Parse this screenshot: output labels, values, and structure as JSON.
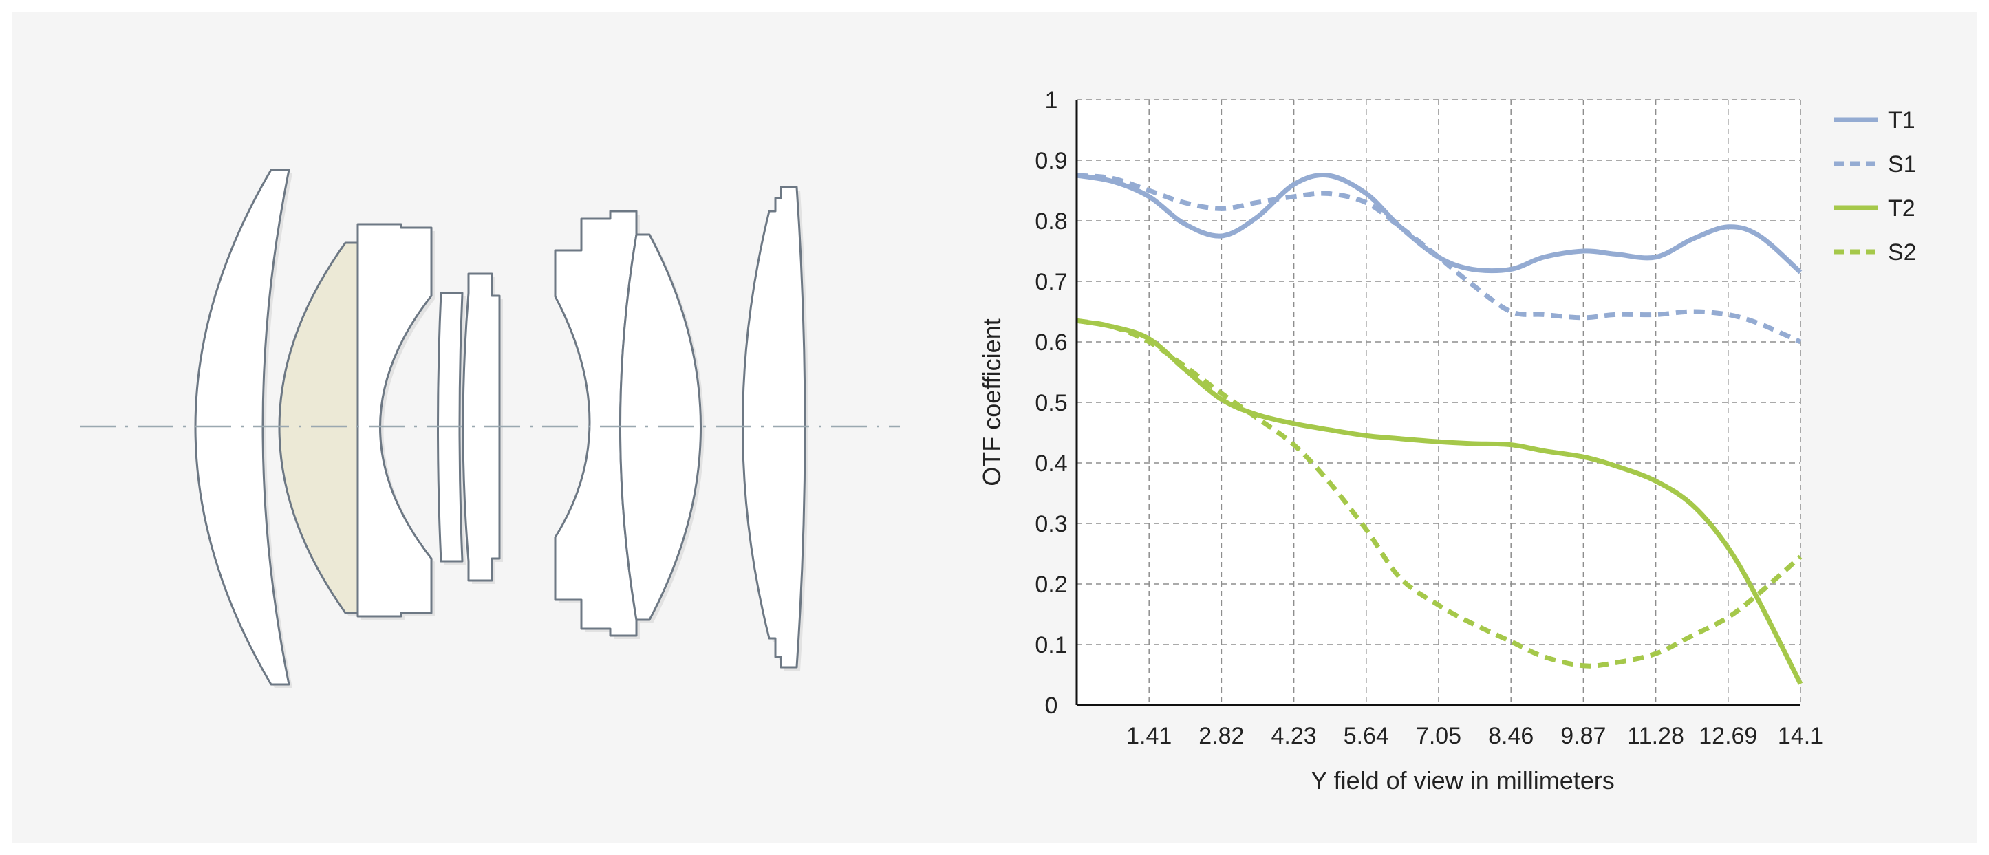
{
  "chart_data": {
    "type": "line",
    "xlabel": "Y field of view in millimeters",
    "ylabel": "OTF coefficient",
    "xlim": [
      0,
      14.1
    ],
    "ylim": [
      0,
      1
    ],
    "x_ticks": [
      "1.41",
      "2.82",
      "4.23",
      "5.64",
      "7.05",
      "8.46",
      "9.87",
      "11.28",
      "12.69",
      "14.1"
    ],
    "y_ticks": [
      "0",
      "0.1",
      "0.2",
      "0.3",
      "0.4",
      "0.5",
      "0.6",
      "0.7",
      "0.8",
      "0.9",
      "1"
    ],
    "grid": true,
    "legend_position": "right",
    "series": [
      {
        "name": "T1",
        "color": "#94abd2",
        "dashed": false,
        "x": [
          0,
          0.7,
          1.41,
          2.1,
          2.82,
          3.5,
          4.23,
          4.9,
          5.64,
          6.3,
          7.05,
          7.7,
          8.46,
          9.1,
          9.87,
          10.5,
          11.28,
          12.0,
          12.69,
          13.3,
          14.1
        ],
        "y": [
          0.875,
          0.865,
          0.84,
          0.795,
          0.775,
          0.805,
          0.86,
          0.875,
          0.845,
          0.79,
          0.74,
          0.72,
          0.72,
          0.74,
          0.75,
          0.745,
          0.74,
          0.77,
          0.79,
          0.775,
          0.715
        ]
      },
      {
        "name": "S1",
        "color": "#94abd2",
        "dashed": true,
        "x": [
          0,
          0.7,
          1.41,
          2.1,
          2.82,
          3.5,
          4.23,
          4.9,
          5.64,
          6.3,
          7.05,
          7.7,
          8.46,
          9.1,
          9.87,
          10.5,
          11.28,
          12.0,
          12.69,
          13.3,
          14.1
        ],
        "y": [
          0.875,
          0.87,
          0.85,
          0.83,
          0.82,
          0.83,
          0.84,
          0.845,
          0.83,
          0.79,
          0.74,
          0.695,
          0.65,
          0.645,
          0.64,
          0.645,
          0.645,
          0.65,
          0.645,
          0.63,
          0.6
        ]
      },
      {
        "name": "T2",
        "color": "#a5c84a",
        "dashed": false,
        "x": [
          0,
          0.7,
          1.41,
          2.1,
          2.82,
          3.5,
          4.23,
          4.9,
          5.64,
          6.3,
          7.05,
          7.7,
          8.46,
          9.1,
          9.87,
          10.5,
          11.28,
          12.0,
          12.69,
          13.3,
          14.1
        ],
        "y": [
          0.635,
          0.625,
          0.605,
          0.555,
          0.505,
          0.48,
          0.465,
          0.455,
          0.445,
          0.44,
          0.435,
          0.432,
          0.43,
          0.42,
          0.41,
          0.395,
          0.37,
          0.33,
          0.26,
          0.17,
          0.035
        ]
      },
      {
        "name": "S2",
        "color": "#a5c84a",
        "dashed": true,
        "x": [
          0,
          0.7,
          1.41,
          2.1,
          2.82,
          3.5,
          4.23,
          4.9,
          5.64,
          6.3,
          7.05,
          7.7,
          8.46,
          9.1,
          9.87,
          10.5,
          11.28,
          12.0,
          12.69,
          13.3,
          14.1
        ],
        "y": [
          0.635,
          0.625,
          0.6,
          0.56,
          0.515,
          0.475,
          0.43,
          0.37,
          0.29,
          0.21,
          0.165,
          0.135,
          0.105,
          0.08,
          0.065,
          0.07,
          0.085,
          0.115,
          0.145,
          0.185,
          0.245
        ]
      }
    ]
  },
  "lens_diagram": {
    "element_fill": "#ffffff",
    "highlight_fill": "#ece9d6",
    "outline_color": "#6d7884",
    "axis_color": "#9aa8b0"
  }
}
